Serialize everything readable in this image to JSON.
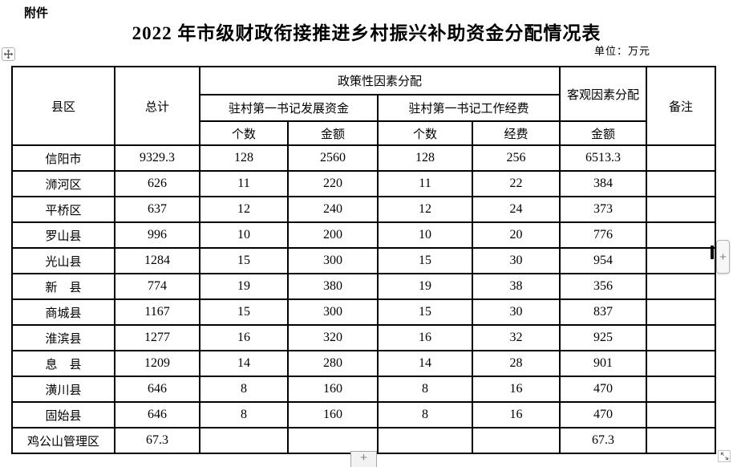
{
  "page": {
    "attachment_label": "附件",
    "title": "2022 年市级财政衔接推进乡村振兴补助资金分配情况表",
    "unit_note": "单位：万元"
  },
  "table": {
    "headers": {
      "county": "县区",
      "total": "总计",
      "policy_group": "政策性因素分配",
      "dev_fund_group": "驻村第一书记发展资金",
      "work_fund_group": "驻村第一书记工作经费",
      "dev_count": "个数",
      "dev_amount": "金额",
      "work_count": "个数",
      "work_fee": "经费",
      "objective_group": "客观因素分配",
      "objective_amount": "金额",
      "remarks": "备注"
    },
    "rows": [
      {
        "county": "信阳市",
        "total": "9329.3",
        "dev_count": "128",
        "dev_amount": "2560",
        "work_count": "128",
        "work_fee": "256",
        "objective_amount": "6513.3",
        "remarks": ""
      },
      {
        "county": "浉河区",
        "total": "626",
        "dev_count": "11",
        "dev_amount": "220",
        "work_count": "11",
        "work_fee": "22",
        "objective_amount": "384",
        "remarks": ""
      },
      {
        "county": "平桥区",
        "total": "637",
        "dev_count": "12",
        "dev_amount": "240",
        "work_count": "12",
        "work_fee": "24",
        "objective_amount": "373",
        "remarks": ""
      },
      {
        "county": "罗山县",
        "total": "996",
        "dev_count": "10",
        "dev_amount": "200",
        "work_count": "10",
        "work_fee": "20",
        "objective_amount": "776",
        "remarks": ""
      },
      {
        "county": "光山县",
        "total": "1284",
        "dev_count": "15",
        "dev_amount": "300",
        "work_count": "15",
        "work_fee": "30",
        "objective_amount": "954",
        "remarks": ""
      },
      {
        "county": "新　县",
        "total": "774",
        "dev_count": "19",
        "dev_amount": "380",
        "work_count": "19",
        "work_fee": "38",
        "objective_amount": "356",
        "remarks": ""
      },
      {
        "county": "商城县",
        "total": "1167",
        "dev_count": "15",
        "dev_amount": "300",
        "work_count": "15",
        "work_fee": "30",
        "objective_amount": "837",
        "remarks": ""
      },
      {
        "county": "淮滨县",
        "total": "1277",
        "dev_count": "16",
        "dev_amount": "320",
        "work_count": "16",
        "work_fee": "32",
        "objective_amount": "925",
        "remarks": ""
      },
      {
        "county": "息　县",
        "total": "1209",
        "dev_count": "14",
        "dev_amount": "280",
        "work_count": "14",
        "work_fee": "28",
        "objective_amount": "901",
        "remarks": ""
      },
      {
        "county": "潢川县",
        "total": "646",
        "dev_count": "8",
        "dev_amount": "160",
        "work_count": "8",
        "work_fee": "16",
        "objective_amount": "470",
        "remarks": ""
      },
      {
        "county": "固始县",
        "total": "646",
        "dev_count": "8",
        "dev_amount": "160",
        "work_count": "8",
        "work_fee": "16",
        "objective_amount": "470",
        "remarks": ""
      },
      {
        "county": "鸡公山管理区",
        "total": "67.3",
        "dev_count": "",
        "dev_amount": "",
        "work_count": "",
        "work_fee": "",
        "objective_amount": "67.3",
        "remarks": ""
      }
    ]
  },
  "controls": {
    "right_plus_label": "+",
    "bottom_plus_label": "+"
  },
  "colors": {
    "border": "#000000",
    "text": "#000000",
    "control_bg": "#f5f5f5",
    "control_border": "#b3b3b3",
    "control_glyph": "#818181"
  }
}
